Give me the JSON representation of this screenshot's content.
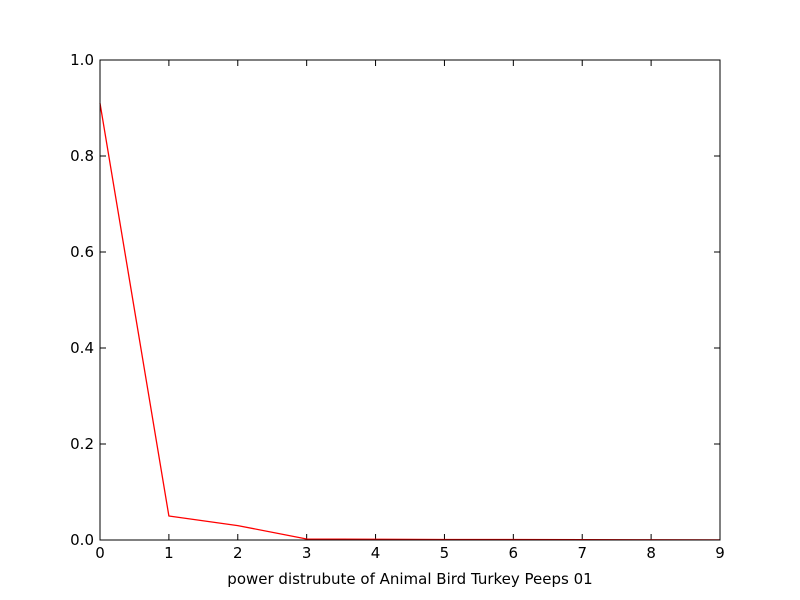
{
  "chart_data": {
    "type": "line",
    "title": "",
    "xlabel": "power distrubute of Animal Bird Turkey Peeps 01",
    "ylabel": "",
    "x": [
      0,
      1,
      2,
      3,
      4,
      5,
      6,
      7,
      8,
      9
    ],
    "series": [
      {
        "color": "#ff0000",
        "values": [
          0.91,
          0.05,
          0.03,
          0.002,
          0.0015,
          0.001,
          0.001,
          0.0008,
          0.0005,
          0.0003
        ]
      }
    ],
    "xlim": [
      0,
      9
    ],
    "ylim": [
      0,
      1.0
    ],
    "xticks": [
      "0",
      "1",
      "2",
      "3",
      "4",
      "5",
      "6",
      "7",
      "8",
      "9"
    ],
    "yticks": [
      "0.0",
      "0.2",
      "0.4",
      "0.6",
      "0.8",
      "1.0"
    ],
    "ytick_values": [
      0,
      0.2,
      0.4,
      0.6,
      0.8,
      1.0
    ],
    "grid": false,
    "legend": "none"
  }
}
